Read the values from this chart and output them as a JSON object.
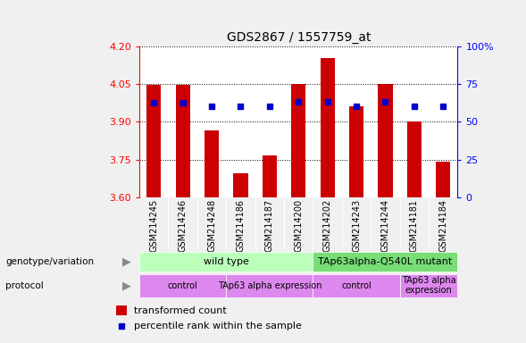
{
  "title": "GDS2867 / 1557759_at",
  "samples": [
    "GSM214245",
    "GSM214246",
    "GSM214248",
    "GSM214186",
    "GSM214187",
    "GSM214200",
    "GSM214202",
    "GSM214243",
    "GSM214244",
    "GSM214181",
    "GSM214184"
  ],
  "bar_values": [
    4.047,
    4.047,
    3.865,
    3.695,
    3.765,
    4.05,
    4.155,
    3.96,
    4.05,
    3.9,
    3.74
  ],
  "dot_values": [
    3.975,
    3.975,
    3.96,
    3.96,
    3.96,
    3.978,
    3.978,
    3.96,
    3.978,
    3.96,
    3.96
  ],
  "ylim_left": [
    3.6,
    4.2
  ],
  "ylim_right": [
    0,
    100
  ],
  "yticks_left": [
    3.6,
    3.75,
    3.9,
    4.05,
    4.2
  ],
  "yticks_right": [
    0,
    25,
    50,
    75,
    100
  ],
  "bar_color": "#cc0000",
  "dot_color": "#0000cc",
  "bg_color": "#f0f0f0",
  "plot_bg": "#ffffff",
  "geno_data": [
    {
      "label": "wild type",
      "xstart": -0.5,
      "xend": 5.5,
      "color": "#bbffbb"
    },
    {
      "label": "TAp63alpha-Q540L mutant",
      "xstart": 5.5,
      "xend": 10.5,
      "color": "#77dd77"
    }
  ],
  "proto_data": [
    {
      "label": "control",
      "xstart": -0.5,
      "xend": 2.5
    },
    {
      "label": "TAp63 alpha expression",
      "xstart": 2.5,
      "xend": 5.5
    },
    {
      "label": "control",
      "xstart": 5.5,
      "xend": 8.5
    },
    {
      "label": "TAp63 alpha\nexpression",
      "xstart": 8.5,
      "xend": 10.5
    }
  ],
  "proto_color": "#dd88ee",
  "legend_items": [
    {
      "color": "#cc0000",
      "label": "transformed count"
    },
    {
      "color": "#0000cc",
      "label": "percentile rank within the sample"
    }
  ]
}
